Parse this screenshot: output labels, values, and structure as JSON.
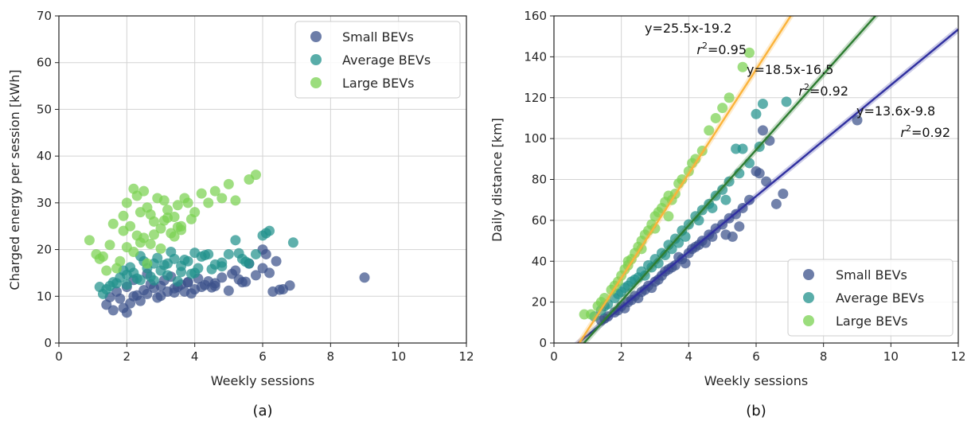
{
  "colors": {
    "small": "#3b528b",
    "average": "#21918c",
    "large": "#7ad151",
    "fit_small": "#3030a0",
    "fit_average": "#2e7d32",
    "fit_large": "#fbb33a"
  },
  "chart_data": [
    {
      "type": "scatter",
      "panel_label": "(a)",
      "xlabel": "Weekly sessions",
      "ylabel": "Charged energy per session [kWh]",
      "xlim": [
        0,
        12
      ],
      "ylim": [
        0,
        70
      ],
      "xticks": [
        0,
        2,
        4,
        6,
        8,
        10,
        12
      ],
      "yticks": [
        0,
        10,
        20,
        30,
        40,
        50,
        60,
        70
      ],
      "grid": true,
      "legend_position": "top-right",
      "series": [
        {
          "name": "Small BEVs",
          "color_key": "small",
          "x": [
            1.4,
            1.6,
            1.8,
            2.0,
            2.2,
            2.4,
            1.7,
            2.6,
            2.8,
            3.0,
            3.2,
            3.4,
            3.6,
            3.8,
            4.0,
            4.2,
            4.4,
            4.6,
            4.8,
            5.0,
            5.2,
            5.4,
            5.6,
            5.8,
            6.0,
            6.2,
            6.4,
            6.6,
            6.8,
            1.5,
            2.1,
            2.3,
            2.5,
            2.7,
            2.9,
            3.1,
            3.3,
            3.5,
            3.7,
            3.9,
            4.1,
            4.3,
            4.5,
            5.1,
            5.3,
            6.1,
            6.3,
            9.0,
            1.9,
            2.0,
            2.2,
            2.6,
            3.0,
            3.4,
            3.8,
            4.6,
            5.5,
            6.0,
            6.5
          ],
          "y": [
            8.2,
            7.0,
            9.5,
            6.5,
            10.0,
            9.0,
            11.0,
            10.5,
            11.8,
            12.2,
            11.0,
            10.8,
            12.5,
            13.0,
            11.5,
            12.0,
            13.2,
            12.8,
            14.0,
            11.2,
            15.5,
            13.0,
            17.0,
            14.5,
            16.0,
            15.0,
            17.5,
            11.5,
            12.3,
            9.8,
            8.5,
            10.2,
            11.3,
            12.6,
            9.7,
            13.4,
            14.2,
            12.0,
            11.0,
            10.6,
            13.8,
            12.4,
            11.9,
            14.8,
            13.6,
            19.0,
            11.0,
            14.0,
            7.5,
            12.0,
            13.5,
            14.8,
            10.1,
            11.7,
            13.0,
            12.2,
            13.1,
            20.0,
            11.4
          ]
        },
        {
          "name": "Average BEVs",
          "color_key": "average",
          "x": [
            1.2,
            1.4,
            1.6,
            1.8,
            2.0,
            2.2,
            2.4,
            2.6,
            2.8,
            3.0,
            3.2,
            3.4,
            3.6,
            3.8,
            4.0,
            4.2,
            4.4,
            4.6,
            4.8,
            5.0,
            5.2,
            5.4,
            5.6,
            5.8,
            6.0,
            6.2,
            6.9,
            1.3,
            1.7,
            1.9,
            2.1,
            2.3,
            2.5,
            2.7,
            2.9,
            3.1,
            3.3,
            3.5,
            3.7,
            3.9,
            4.1,
            4.3,
            4.5,
            5.3,
            5.5,
            6.1,
            1.5,
            2.0,
            2.4,
            2.8,
            3.2,
            3.6,
            4.0,
            4.8
          ],
          "y": [
            12.0,
            11.5,
            13.0,
            14.0,
            12.5,
            15.0,
            13.5,
            16.0,
            17.0,
            15.5,
            14.5,
            18.0,
            16.5,
            17.5,
            15.0,
            18.5,
            19.0,
            16.8,
            17.2,
            19.0,
            22.0,
            18.0,
            17.0,
            19.0,
            23.0,
            24.0,
            21.5,
            10.5,
            12.8,
            15.5,
            16.2,
            13.8,
            17.5,
            14.2,
            18.2,
            16.7,
            19.5,
            13.2,
            17.8,
            14.8,
            16.0,
            18.8,
            15.8,
            19.2,
            17.4,
            23.5,
            12.2,
            14.6,
            18.6,
            13.4,
            17.0,
            15.2,
            19.3,
            16.4
          ]
        },
        {
          "name": "Large BEVs",
          "color_key": "large",
          "x": [
            0.9,
            1.1,
            1.3,
            1.5,
            1.7,
            1.9,
            2.0,
            2.1,
            2.2,
            2.3,
            2.4,
            2.5,
            2.6,
            2.7,
            2.8,
            2.9,
            3.0,
            3.1,
            3.2,
            3.3,
            3.4,
            3.5,
            3.6,
            3.7,
            3.8,
            3.9,
            4.0,
            4.2,
            4.4,
            4.6,
            4.8,
            5.0,
            5.2,
            5.6,
            5.8,
            1.4,
            1.6,
            1.8,
            2.0,
            2.2,
            2.4,
            2.6,
            2.8,
            3.0,
            3.2,
            3.4,
            3.6,
            1.2,
            1.9,
            2.3,
            2.7,
            3.1,
            3.5,
            2.5
          ],
          "y": [
            22.0,
            19.0,
            18.5,
            21.0,
            16.0,
            24.0,
            20.5,
            25.0,
            33.0,
            23.0,
            28.0,
            22.5,
            29.0,
            27.5,
            26.0,
            31.0,
            24.5,
            30.5,
            28.5,
            23.5,
            27.0,
            29.5,
            25.0,
            31.0,
            30.0,
            26.5,
            28.0,
            32.0,
            30.0,
            32.5,
            31.0,
            34.0,
            30.5,
            35.0,
            36.0,
            15.5,
            25.5,
            17.5,
            30.0,
            19.5,
            21.5,
            17.0,
            23.2,
            20.2,
            26.8,
            22.8,
            24.2,
            18.0,
            27.2,
            31.5,
            21.2,
            26.2,
            24.8,
            32.5
          ]
        }
      ]
    },
    {
      "type": "scatter",
      "panel_label": "(b)",
      "xlabel": "Weekly sessions",
      "ylabel": "Daily distance [km]",
      "xlim": [
        0,
        12
      ],
      "ylim": [
        0,
        160
      ],
      "xticks": [
        0,
        2,
        4,
        6,
        8,
        10,
        12
      ],
      "yticks": [
        0,
        20,
        40,
        60,
        80,
        100,
        120,
        140,
        160
      ],
      "grid": true,
      "legend_position": "bottom-right",
      "series": [
        {
          "name": "Small BEVs",
          "color_key": "small",
          "x": [
            1.4,
            1.6,
            1.8,
            2.0,
            2.2,
            2.4,
            2.6,
            2.8,
            3.0,
            3.2,
            3.4,
            3.6,
            3.8,
            4.0,
            4.2,
            4.4,
            4.6,
            4.8,
            5.0,
            5.2,
            5.4,
            5.6,
            5.8,
            6.0,
            6.2,
            6.4,
            6.6,
            6.8,
            9.0,
            1.5,
            1.9,
            2.3,
            2.7,
            3.1,
            3.5,
            3.9,
            4.3,
            4.7,
            5.1,
            5.5,
            6.1,
            6.3,
            2.1,
            2.5,
            2.9,
            3.3,
            3.7,
            4.1,
            4.5,
            5.3
          ],
          "y": [
            11.0,
            13.0,
            15.0,
            18.0,
            20.0,
            23.0,
            25.0,
            28.0,
            30.0,
            33.0,
            36.0,
            38.0,
            41.0,
            44.0,
            47.0,
            50.0,
            53.0,
            56.0,
            58.0,
            61.0,
            63.0,
            66.0,
            70.0,
            84.0,
            104.0,
            99.0,
            68.0,
            73.0,
            109.0,
            12.0,
            16.0,
            21.0,
            26.0,
            31.0,
            37.0,
            39.0,
            48.0,
            52.0,
            53.0,
            57.0,
            83.0,
            79.0,
            17.0,
            22.0,
            27.0,
            35.0,
            42.0,
            46.0,
            49.0,
            52.0
          ]
        },
        {
          "name": "Average BEVs",
          "color_key": "average",
          "x": [
            1.2,
            1.4,
            1.6,
            1.8,
            2.0,
            2.2,
            2.4,
            2.6,
            2.8,
            3.0,
            3.2,
            3.4,
            3.6,
            3.8,
            4.0,
            4.2,
            4.4,
            4.6,
            4.8,
            5.0,
            5.2,
            5.4,
            5.6,
            5.8,
            6.0,
            6.2,
            6.9,
            1.5,
            1.9,
            2.3,
            2.7,
            3.1,
            3.5,
            3.9,
            4.3,
            4.7,
            5.1,
            5.5,
            6.1,
            2.1,
            2.5,
            2.9,
            3.3,
            3.7
          ],
          "y": [
            13.0,
            16.0,
            19.0,
            22.0,
            25.0,
            28.0,
            31.0,
            35.0,
            38.0,
            41.0,
            44.0,
            48.0,
            51.0,
            55.0,
            58.0,
            62.0,
            65.0,
            68.0,
            72.0,
            75.0,
            79.0,
            95.0,
            95.0,
            88.0,
            112.0,
            117.0,
            118.0,
            18.0,
            24.0,
            30.0,
            33.0,
            39.0,
            46.0,
            52.0,
            60.0,
            66.0,
            70.0,
            83.0,
            96.0,
            27.0,
            32.0,
            37.0,
            43.0,
            49.0
          ]
        },
        {
          "name": "Large BEVs",
          "color_key": "large",
          "x": [
            0.9,
            1.1,
            1.3,
            1.5,
            1.7,
            1.9,
            2.0,
            2.1,
            2.2,
            2.3,
            2.4,
            2.5,
            2.6,
            2.7,
            2.8,
            2.9,
            3.0,
            3.1,
            3.2,
            3.3,
            3.4,
            3.5,
            3.6,
            3.8,
            4.0,
            4.2,
            4.4,
            4.6,
            4.8,
            5.0,
            5.2,
            5.6,
            5.8,
            1.4,
            1.8,
            2.2,
            2.6,
            3.0,
            3.4,
            3.7,
            4.1
          ],
          "y": [
            14.0,
            14.0,
            18.0,
            22.0,
            26.0,
            30.0,
            33.0,
            36.0,
            38.0,
            41.0,
            44.0,
            47.0,
            50.0,
            53.0,
            55.0,
            58.0,
            62.0,
            64.0,
            66.0,
            69.0,
            72.0,
            70.0,
            73.0,
            80.0,
            84.0,
            90.0,
            94.0,
            104.0,
            110.0,
            115.0,
            120.0,
            135.0,
            142.0,
            20.0,
            28.0,
            40.0,
            46.0,
            56.0,
            62.0,
            78.0,
            88.0
          ]
        }
      ],
      "fits": [
        {
          "color_key": "fit_small",
          "slope": 13.6,
          "intercept": -9.8,
          "equation": "y=13.6x-9.8",
          "r2_prefix": "r",
          "r2_sup": "2",
          "r2_value": "=0.92"
        },
        {
          "color_key": "fit_average",
          "slope": 18.5,
          "intercept": -16.5,
          "equation": "y=18.5x-16.5",
          "r2_prefix": "r",
          "r2_sup": "2",
          "r2_value": "=0.92"
        },
        {
          "color_key": "fit_large",
          "slope": 25.5,
          "intercept": -19.2,
          "equation": "y=25.5x-19.2",
          "r2_prefix": "r",
          "r2_sup": "2",
          "r2_value": "=0.95"
        }
      ]
    }
  ]
}
